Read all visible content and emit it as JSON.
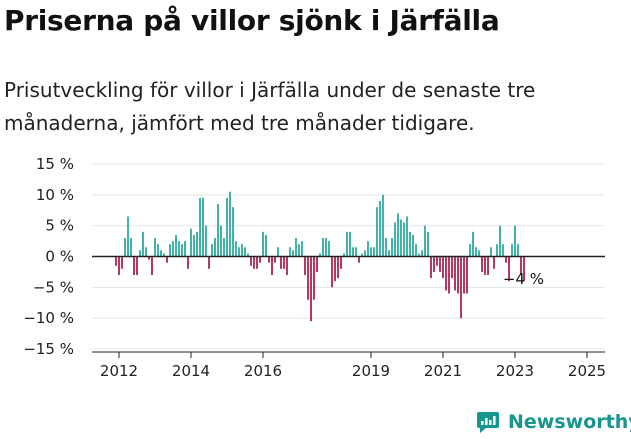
{
  "title": "Priserna på villor sjönk i Järfälla",
  "subtitle": "Prisutveckling för villor i Järfälla under de senaste tre månaderna, jämfört med tre månader tidigare.",
  "brand": {
    "name": "Newsworthy",
    "icon": "newsworthy-logo-icon"
  },
  "colors": {
    "positive": "#17a096",
    "negative": "#9e0a3c",
    "axis": "#222222",
    "grid": "#e4e4e4"
  },
  "chart_data": {
    "type": "bar",
    "title": "Priserna på villor sjönk i Järfälla",
    "xlabel": "",
    "ylabel": "",
    "y_unit": "%",
    "ylim": [
      -15,
      15
    ],
    "y_ticks": [
      15,
      10,
      5,
      0,
      -5,
      -10,
      -15
    ],
    "y_tick_labels": [
      "15 %",
      "10 %",
      "5 %",
      "0 %",
      "−5 %",
      "−10 %",
      "−15 %"
    ],
    "x_ticks": [
      2012,
      2014,
      2016,
      2019,
      2021,
      2023,
      2025
    ],
    "x_tick_labels": [
      "2012",
      "2014",
      "2016",
      "2019",
      "2021",
      "2023",
      "2025"
    ],
    "x_range": [
      2011.25,
      2025.5
    ],
    "grid": true,
    "frequency": "monthly",
    "start": "2011-12",
    "end": "2025-01",
    "values": [
      -1.5,
      -3,
      -2,
      3,
      6.5,
      3,
      -3,
      -3,
      1,
      4,
      1.5,
      -0.5,
      -3,
      3,
      2,
      1,
      0.5,
      -1,
      2,
      2.5,
      3.5,
      2.5,
      2,
      2.5,
      -2,
      4.5,
      3.5,
      4,
      9.5,
      9.5,
      5,
      -2,
      2,
      3,
      8.5,
      5,
      3,
      9.5,
      10.5,
      8,
      2.5,
      1.5,
      2,
      1.5,
      0.5,
      -1.5,
      -2,
      -2,
      -1,
      4,
      3.5,
      -1,
      -3,
      -1,
      1.5,
      -2,
      -2,
      -3,
      1.5,
      1,
      3,
      2,
      2.5,
      -3,
      -7,
      -10.5,
      -7,
      -2.5,
      0.5,
      3,
      3,
      2.5,
      -5,
      -4,
      -3.5,
      -2,
      0.5,
      4,
      4,
      1.5,
      1.5,
      -1,
      0.5,
      1,
      2.5,
      1.5,
      1.5,
      8,
      9,
      10,
      3,
      1,
      3,
      5.5,
      7,
      6,
      5.5,
      6.5,
      4,
      3.5,
      2,
      0.5,
      1,
      5,
      4,
      -3.5,
      -2.5,
      -1.5,
      -2.5,
      -3.5,
      -5.5,
      -6,
      -3.5,
      -5.5,
      -6,
      -10,
      -6,
      -6,
      2,
      4,
      1.5,
      1,
      -2.5,
      -3,
      -3,
      1.5,
      -2,
      2,
      5,
      2,
      -1,
      -4,
      2,
      5,
      2,
      -3,
      -4
    ],
    "annotations": [
      {
        "text": "−4 %"
      }
    ]
  }
}
